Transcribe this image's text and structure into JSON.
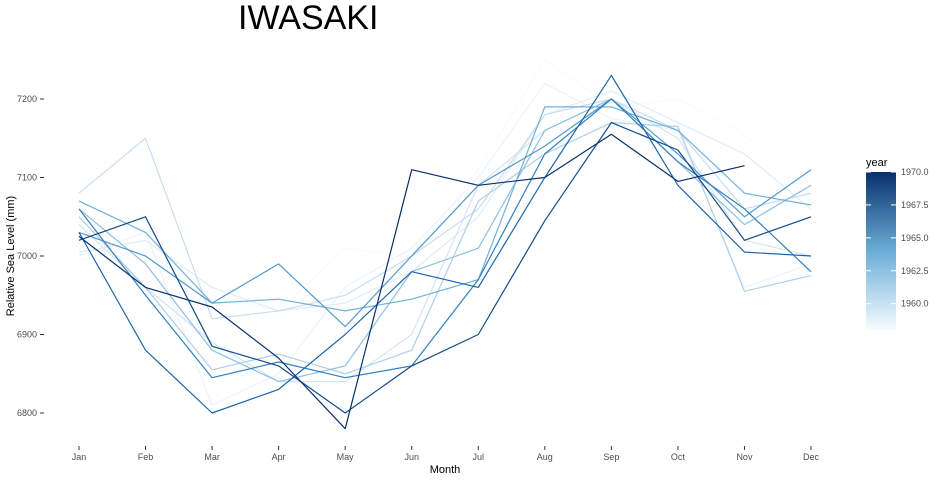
{
  "chart_data": {
    "type": "line",
    "title": "IWASAKI",
    "xlabel": "Month",
    "ylabel": "Relative Sea Level (mm)",
    "categories": [
      "Jan",
      "Feb",
      "Mar",
      "Apr",
      "May",
      "Jun",
      "Jul",
      "Aug",
      "Sep",
      "Oct",
      "Nov",
      "Dec"
    ],
    "ylim": [
      6770,
      7250
    ],
    "yticks": [
      6800,
      6900,
      7000,
      7100,
      7200
    ],
    "ytick_labels": [
      "6800",
      "6900",
      "7000",
      "7100",
      "7200"
    ],
    "grid": false,
    "legend": {
      "title": "year",
      "position": "right",
      "ticks": [
        1960.0,
        1962.5,
        1965.0,
        1967.5,
        1970.0
      ],
      "tick_labels": [
        "1960.0",
        "1962.5",
        "1965.0",
        "1967.5",
        "1970.0"
      ],
      "range": [
        1958,
        1970
      ],
      "color_low": "#f7fbff",
      "color_high": "#08306b"
    },
    "series": [
      {
        "year": 1958,
        "values": [
          6995,
          7010,
          6950,
          6930,
          7010,
          7000,
          7110,
          7250,
          7190,
          7200,
          7155,
          7070
        ]
      },
      {
        "year": 1959,
        "values": [
          7000,
          7030,
          6810,
          6850,
          6960,
          7010,
          7100,
          7220,
          7175,
          7160,
          6960,
          6990
        ]
      },
      {
        "year": 1960,
        "values": [
          7005,
          7020,
          6960,
          6930,
          6940,
          6980,
          7050,
          7180,
          7210,
          7170,
          7130,
          7060
        ]
      },
      {
        "year": 1961,
        "values": [
          7040,
          6960,
          6890,
          6840,
          6840,
          6900,
          7090,
          7160,
          7200,
          7150,
          7020,
          7000
        ]
      },
      {
        "year": 1962,
        "values": [
          7080,
          7150,
          6920,
          6930,
          6950,
          7000,
          7060,
          7180,
          7200,
          7160,
          7060,
          7080
        ]
      },
      {
        "year": 1963,
        "values": [
          7050,
          6960,
          6855,
          6875,
          6850,
          6880,
          7070,
          7130,
          7170,
          7165,
          6955,
          6975
        ]
      },
      {
        "year": 1964,
        "values": [
          7060,
          6990,
          6880,
          6840,
          6860,
          6980,
          7010,
          7160,
          7200,
          7120,
          7040,
          7090
        ]
      },
      {
        "year": 1965,
        "values": [
          7070,
          7030,
          6940,
          6945,
          6930,
          6945,
          6970,
          7190,
          7190,
          7160,
          7080,
          7065
        ]
      },
      {
        "year": 1966,
        "values": [
          7030,
          7000,
          6940,
          6990,
          6910,
          7000,
          7090,
          7140,
          7200,
          7130,
          7050,
          7110
        ]
      },
      {
        "year": 1967,
        "values": [
          7060,
          6950,
          6845,
          6865,
          6845,
          6860,
          6970,
          7130,
          7200,
          7120,
          7060,
          6980
        ]
      },
      {
        "year": 1968,
        "values": [
          7030,
          6880,
          6800,
          6830,
          6900,
          6980,
          6960,
          7100,
          7230,
          7090,
          7005,
          7000
        ]
      },
      {
        "year": 1969,
        "values": [
          7020,
          7050,
          6885,
          6860,
          6800,
          6860,
          6900,
          7045,
          7170,
          7135,
          7020,
          7050
        ]
      },
      {
        "year": 1970,
        "values": [
          7025,
          6960,
          6935,
          6870,
          6780,
          7110,
          7090,
          7100,
          7155,
          7095,
          7115,
          null
        ]
      }
    ]
  }
}
